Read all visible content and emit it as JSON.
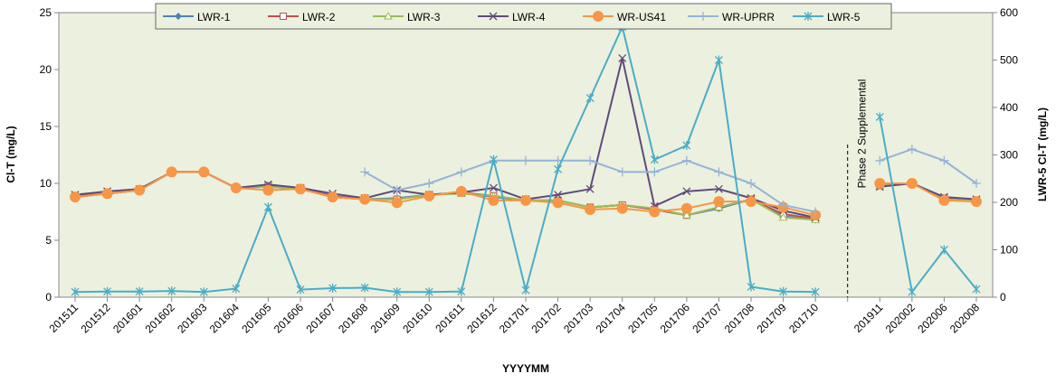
{
  "chart_data": {
    "type": "line",
    "y_label": "Cl-T (mg/L)",
    "y2_label": "LWR-5 Cl-T (mg/L)",
    "x_label": "YYYYMM",
    "annotation": "Phase 2 Supplemental",
    "annotation_category": 24,
    "categories": [
      "201511",
      "201512",
      "201601",
      "201602",
      "201603",
      "201604",
      "201605",
      "201606",
      "201607",
      "201608",
      "201609",
      "201610",
      "201611",
      "201612",
      "201701",
      "201702",
      "201703",
      "201704",
      "201705",
      "201706",
      "201707",
      "201708",
      "201709",
      "201710",
      null,
      "201911",
      "202002",
      "202006",
      "202008"
    ],
    "ylim": [
      0,
      25
    ],
    "yticks": [
      0,
      5,
      10,
      15,
      20,
      25
    ],
    "y2lim": [
      0,
      600
    ],
    "y2ticks": [
      0,
      100,
      200,
      300,
      400,
      500,
      600
    ],
    "background": "#ebf1de",
    "legend": "top",
    "series": [
      {
        "name": "LWR-1",
        "color": "#4f81bd",
        "marker": "diamond",
        "values": [
          8.8,
          9.1,
          9.4,
          11,
          11,
          9.6,
          9.7,
          9.5,
          8.8,
          8.6,
          8.7,
          9.0,
          9.2,
          8.8,
          8.5,
          8.5,
          7.9,
          8.1,
          7.7,
          7.2,
          7.8,
          8.6,
          7.1,
          6.8,
          null,
          9.9,
          10.0,
          8.6,
          8.5
        ]
      },
      {
        "name": "LWR-2",
        "color": "#c0504d",
        "marker": "square",
        "values": [
          8.9,
          9.1,
          9.4,
          11,
          11,
          9.6,
          9.8,
          9.5,
          8.9,
          8.6,
          8.6,
          9.0,
          9.2,
          8.9,
          8.5,
          8.5,
          7.9,
          8.1,
          7.7,
          7.2,
          7.9,
          8.6,
          7.3,
          6.9,
          null,
          9.8,
          10.0,
          8.7,
          8.5
        ]
      },
      {
        "name": "LWR-3",
        "color": "#9bbb59",
        "marker": "triangle",
        "values": [
          8.8,
          9.1,
          9.4,
          11,
          11,
          9.6,
          9.7,
          9.5,
          8.8,
          8.6,
          8.6,
          9.0,
          9.1,
          8.9,
          8.5,
          8.5,
          7.9,
          8.1,
          7.8,
          7.2,
          7.9,
          8.6,
          7.0,
          6.8,
          null,
          9.8,
          10.0,
          8.6,
          8.5
        ]
      },
      {
        "name": "LWR-4",
        "color": "#604a7b",
        "marker": "x",
        "values": [
          9.0,
          9.3,
          9.5,
          11,
          11,
          9.6,
          9.9,
          9.6,
          9.1,
          8.7,
          9.4,
          9.0,
          9.2,
          9.6,
          8.6,
          9.0,
          9.5,
          21,
          8.0,
          9.3,
          9.5,
          8.7,
          7.6,
          7.0,
          null,
          9.7,
          10.0,
          8.8,
          8.6
        ]
      },
      {
        "name": "WR-US41",
        "color": "#f79646",
        "marker": "circle",
        "values": [
          8.8,
          9.1,
          9.4,
          11,
          11,
          9.6,
          9.4,
          9.5,
          8.8,
          8.6,
          8.3,
          8.9,
          9.3,
          8.5,
          8.5,
          8.3,
          7.7,
          7.8,
          7.5,
          7.8,
          8.4,
          8.4,
          7.9,
          7.2,
          null,
          10.0,
          10.0,
          8.5,
          8.4
        ]
      },
      {
        "name": "WR-UPRR",
        "color": "#95b3d7",
        "marker": "plus",
        "values": [
          null,
          null,
          null,
          null,
          null,
          null,
          null,
          null,
          null,
          11,
          9.4,
          10,
          11,
          12,
          12,
          12,
          12,
          11,
          11,
          12,
          11,
          10,
          8.1,
          7.5,
          null,
          12,
          13,
          12,
          10
        ]
      },
      {
        "name": "LWR-5",
        "color": "#4bacc6",
        "marker": "star",
        "axis": "y2",
        "values": [
          11,
          12,
          12,
          13,
          11,
          18,
          190,
          16,
          19,
          20,
          11,
          11,
          12,
          290,
          15,
          270,
          420,
          570,
          290,
          320,
          500,
          22,
          12,
          11,
          null,
          380,
          11,
          100,
          17
        ]
      }
    ]
  }
}
